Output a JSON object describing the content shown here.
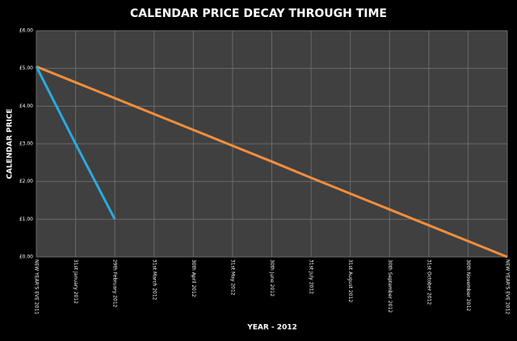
{
  "chart_data": {
    "type": "line",
    "title": "CALENDAR PRICE DECAY THROUGH TIME",
    "xlabel": "YEAR - 2012",
    "ylabel": "CALENDAR PRICE",
    "categories": [
      "NEW YEAR'S EVE 2011",
      "31st January 2012",
      "29th February 2012",
      "31st March 2012",
      "30th April 2012",
      "31st May 2012",
      "30th June 2012",
      "31st July 2012",
      "31st August 2012",
      "30th September 2012",
      "31st October 2012",
      "30th November 2012",
      "NEW YEAR'S EVE 2012"
    ],
    "series": [
      {
        "color": "#f28e3c",
        "values": [
          5.05,
          4.63,
          4.21,
          3.79,
          3.37,
          2.95,
          2.53,
          2.1,
          1.68,
          1.26,
          0.84,
          0.42,
          0
        ]
      },
      {
        "color": "#29abe2",
        "values": [
          5.05,
          3.0,
          1.0,
          null,
          null,
          null,
          null,
          null,
          null,
          null,
          null,
          null,
          null
        ]
      }
    ],
    "ylim": [
      0,
      6
    ],
    "yticks": [
      {
        "value": 0,
        "label": "£0.00"
      },
      {
        "value": 1,
        "label": "£1.00"
      },
      {
        "value": 2,
        "label": "£2.00"
      },
      {
        "value": 3,
        "label": "£3.00"
      },
      {
        "value": 4,
        "label": "£4.00"
      },
      {
        "value": 5,
        "label": "£5.00"
      },
      {
        "value": 6,
        "label": "£6.00"
      }
    ],
    "grid": true
  }
}
